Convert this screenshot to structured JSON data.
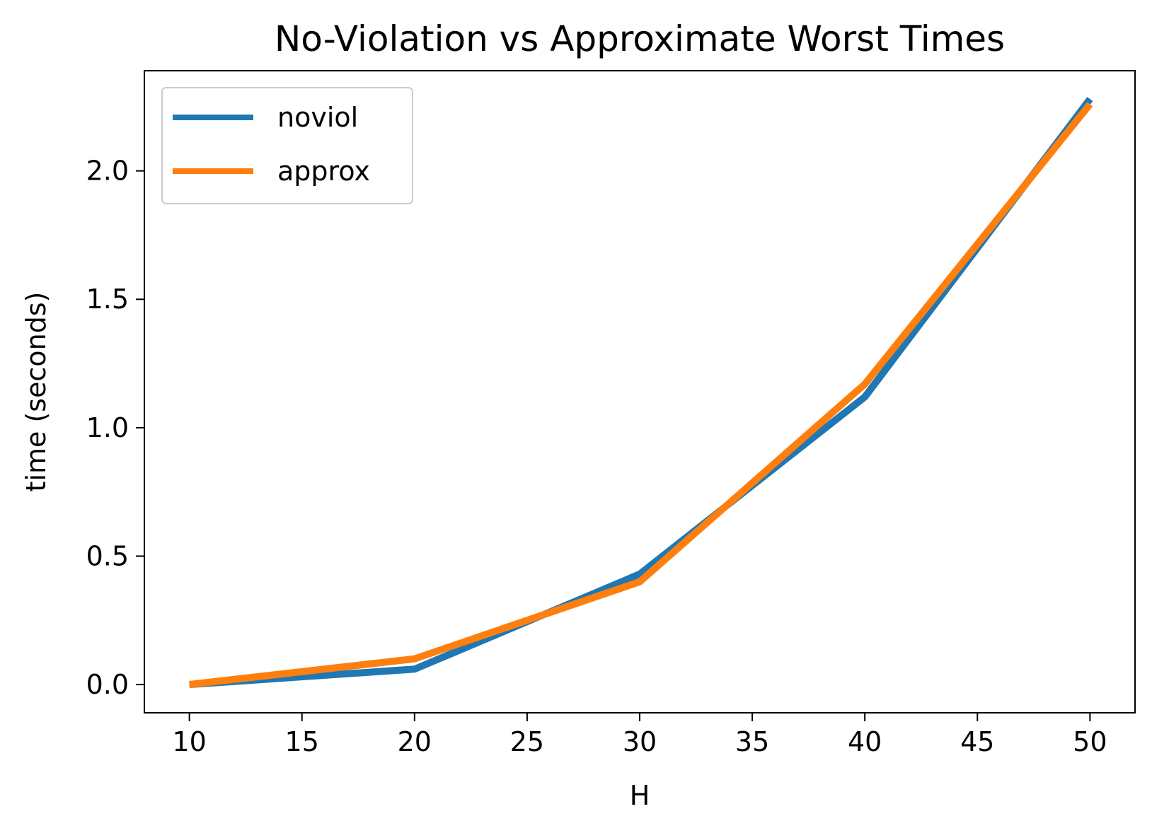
{
  "chart_data": {
    "type": "line",
    "title": "No-Violation vs Approximate Worst Times",
    "xlabel": "H",
    "ylabel": "time (seconds)",
    "x": [
      10,
      20,
      30,
      40,
      50
    ],
    "series": [
      {
        "name": "noviol",
        "values": [
          0.0,
          0.06,
          0.43,
          1.12,
          2.28
        ],
        "color": "#1f77b4"
      },
      {
        "name": "approx",
        "values": [
          0.0,
          0.1,
          0.4,
          1.17,
          2.26
        ],
        "color": "#ff7f0e"
      }
    ],
    "xlim": [
      8,
      52
    ],
    "ylim": [
      -0.11,
      2.39
    ],
    "xticks": [
      10,
      15,
      20,
      25,
      30,
      35,
      40,
      45,
      50
    ],
    "xtick_labels": [
      "10",
      "15",
      "20",
      "25",
      "30",
      "35",
      "40",
      "45",
      "50"
    ],
    "yticks": [
      0.0,
      0.5,
      1.0,
      1.5,
      2.0
    ],
    "ytick_labels": [
      "0.0",
      "0.5",
      "1.0",
      "1.5",
      "2.0"
    ],
    "grid": false,
    "legend_position": "upper-left"
  }
}
